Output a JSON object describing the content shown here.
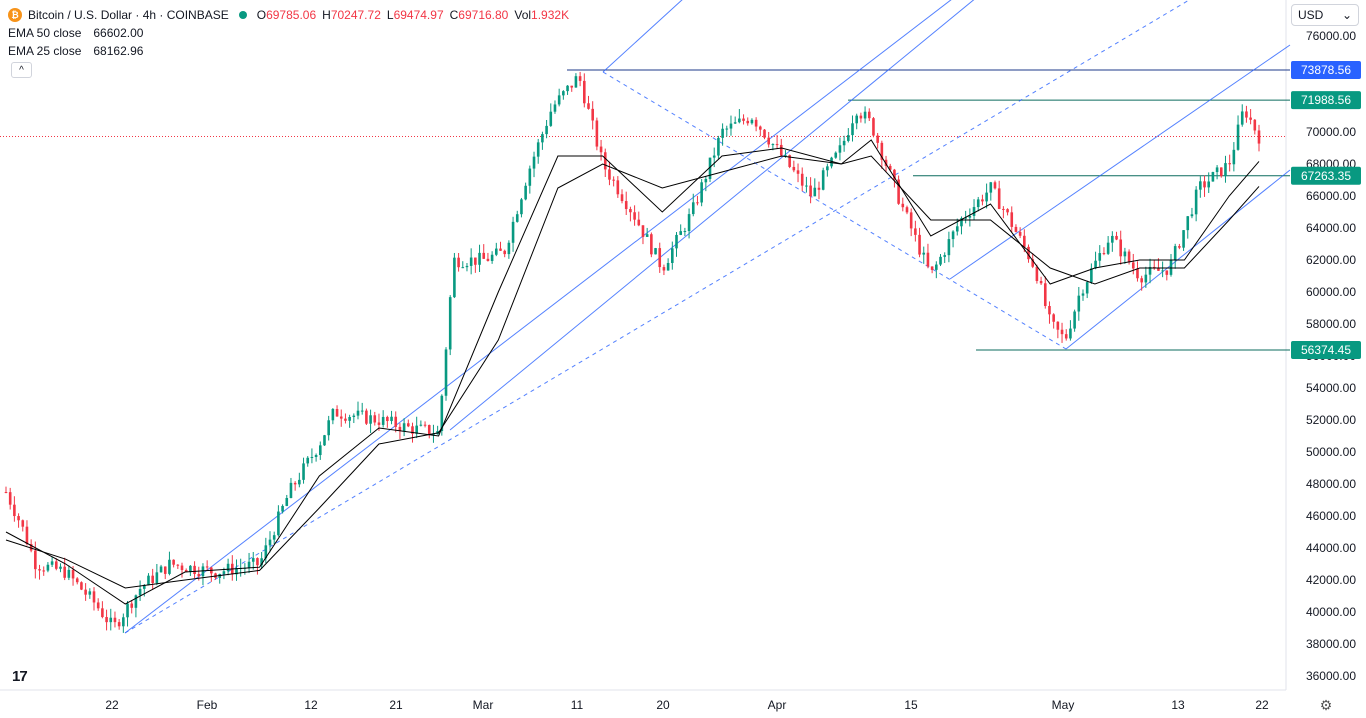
{
  "header": {
    "symbol_title": "Bitcoin / U.S. Dollar · 4h · COINBASE",
    "open_label": "O",
    "open": "69785.06",
    "high_label": "H",
    "high": "70247.72",
    "low_label": "L",
    "low": "69474.97",
    "close_label": "C",
    "close": "69716.80",
    "vol_label": "Vol",
    "vol": "1.932K"
  },
  "indicators": [
    {
      "name": "EMA 50 close",
      "value": "66602.00"
    },
    {
      "name": "EMA 25 close",
      "value": "68162.96"
    }
  ],
  "currency": "USD",
  "collapse_glyph": "^",
  "logo_text": "17",
  "icons": {
    "coin": "bitcoin-icon",
    "settings": "gear-icon",
    "dropdown": "chevron-down-icon"
  },
  "colors": {
    "up": "#089981",
    "down": "#f23645",
    "ema": "#000000",
    "channel": "#2962ff",
    "level_green": "#089981",
    "level_blue": "#2962ff"
  },
  "chart_data": {
    "type": "candlestick",
    "title": "Bitcoin / U.S. Dollar · 4h · COINBASE",
    "ylim": [
      35000,
      77000
    ],
    "y_ticks": [
      "76000.00",
      "74000.00",
      "72000.00",
      "70000.00",
      "68000.00",
      "66000.00",
      "64000.00",
      "62000.00",
      "60000.00",
      "58000.00",
      "56000.00",
      "54000.00",
      "52000.00",
      "50000.00",
      "48000.00",
      "46000.00",
      "44000.00",
      "42000.00",
      "40000.00",
      "38000.00",
      "36000.00"
    ],
    "x_ticks": [
      "22",
      "Feb",
      "12",
      "21",
      "Mar",
      "11",
      "20",
      "Apr",
      "15",
      "May",
      "13",
      "22"
    ],
    "last_price": 69716.8,
    "price_labels": [
      {
        "text": "73878.56",
        "value": 73878.56,
        "color": "blue"
      },
      {
        "text": "71988.56",
        "value": 71988.56,
        "color": "green"
      },
      {
        "text": "67263.35",
        "value": 67263.35,
        "color": "green"
      },
      {
        "text": "56374.45",
        "value": 56374.45,
        "color": "green"
      }
    ],
    "price_path": [
      {
        "x": 0,
        "y": 47500
      },
      {
        "x": 0.5,
        "y": 45500
      },
      {
        "x": 1,
        "y": 43000
      },
      {
        "x": 2,
        "y": 42500
      },
      {
        "x": 3,
        "y": 40500
      },
      {
        "x": 3.6,
        "y": 39000
      },
      {
        "x": 4.5,
        "y": 41500
      },
      {
        "x": 5.5,
        "y": 43000
      },
      {
        "x": 7,
        "y": 42500
      },
      {
        "x": 8.5,
        "y": 43000
      },
      {
        "x": 9.5,
        "y": 47500
      },
      {
        "x": 10.5,
        "y": 50500
      },
      {
        "x": 11,
        "y": 52500
      },
      {
        "x": 12.5,
        "y": 52000
      },
      {
        "x": 13.5,
        "y": 51500
      },
      {
        "x": 14.5,
        "y": 51200
      },
      {
        "x": 15,
        "y": 62000
      },
      {
        "x": 16,
        "y": 62000
      },
      {
        "x": 16.7,
        "y": 62500
      },
      {
        "x": 17.5,
        "y": 67500
      },
      {
        "x": 18.3,
        "y": 71500
      },
      {
        "x": 19.2,
        "y": 73500
      },
      {
        "x": 20,
        "y": 68000
      },
      {
        "x": 21,
        "y": 65000
      },
      {
        "x": 22,
        "y": 61500
      },
      {
        "x": 23,
        "y": 65000
      },
      {
        "x": 24,
        "y": 70000
      },
      {
        "x": 25,
        "y": 71000
      },
      {
        "x": 26,
        "y": 68500
      },
      {
        "x": 27,
        "y": 66000
      },
      {
        "x": 28,
        "y": 69000
      },
      {
        "x": 28.5,
        "y": 71500
      },
      {
        "x": 29,
        "y": 70500
      },
      {
        "x": 30,
        "y": 65500
      },
      {
        "x": 31,
        "y": 61000
      },
      {
        "x": 32,
        "y": 64500
      },
      {
        "x": 33,
        "y": 66500
      },
      {
        "x": 33.5,
        "y": 65000
      },
      {
        "x": 34.5,
        "y": 61500
      },
      {
        "x": 35,
        "y": 58000
      },
      {
        "x": 35.5,
        "y": 57000
      },
      {
        "x": 36,
        "y": 60000
      },
      {
        "x": 37,
        "y": 63500
      },
      {
        "x": 38,
        "y": 61000
      },
      {
        "x": 39,
        "y": 61500
      },
      {
        "x": 40,
        "y": 66500
      },
      {
        "x": 41,
        "y": 68000
      },
      {
        "x": 41.5,
        "y": 71500
      },
      {
        "x": 42,
        "y": 69716.8
      }
    ],
    "ema_fast_path": [
      {
        "x": 0,
        "y": 45000
      },
      {
        "x": 2,
        "y": 43000
      },
      {
        "x": 4,
        "y": 40500
      },
      {
        "x": 6,
        "y": 42500
      },
      {
        "x": 8.5,
        "y": 42800
      },
      {
        "x": 10.5,
        "y": 48500
      },
      {
        "x": 12.5,
        "y": 51500
      },
      {
        "x": 14.5,
        "y": 51000
      },
      {
        "x": 16.5,
        "y": 60000
      },
      {
        "x": 18.5,
        "y": 68500
      },
      {
        "x": 20,
        "y": 68500
      },
      {
        "x": 22,
        "y": 65000
      },
      {
        "x": 24,
        "y": 68500
      },
      {
        "x": 26,
        "y": 69000
      },
      {
        "x": 28,
        "y": 68000
      },
      {
        "x": 29,
        "y": 69500
      },
      {
        "x": 31,
        "y": 63500
      },
      {
        "x": 33,
        "y": 65500
      },
      {
        "x": 35,
        "y": 60500
      },
      {
        "x": 36.5,
        "y": 61500
      },
      {
        "x": 38,
        "y": 62000
      },
      {
        "x": 39.5,
        "y": 62000
      },
      {
        "x": 41,
        "y": 66000
      },
      {
        "x": 42,
        "y": 68162.96
      }
    ],
    "ema_slow_path": [
      {
        "x": 0,
        "y": 44500
      },
      {
        "x": 2,
        "y": 43300
      },
      {
        "x": 4,
        "y": 41500
      },
      {
        "x": 6,
        "y": 42000
      },
      {
        "x": 8.5,
        "y": 42600
      },
      {
        "x": 10.5,
        "y": 46500
      },
      {
        "x": 12.5,
        "y": 50500
      },
      {
        "x": 14.5,
        "y": 51200
      },
      {
        "x": 16.5,
        "y": 57000
      },
      {
        "x": 18.5,
        "y": 66500
      },
      {
        "x": 20,
        "y": 68000
      },
      {
        "x": 22,
        "y": 66500
      },
      {
        "x": 24,
        "y": 67500
      },
      {
        "x": 26,
        "y": 68500
      },
      {
        "x": 28,
        "y": 68000
      },
      {
        "x": 29,
        "y": 68500
      },
      {
        "x": 31,
        "y": 64500
      },
      {
        "x": 33,
        "y": 64500
      },
      {
        "x": 35,
        "y": 61500
      },
      {
        "x": 36.5,
        "y": 60500
      },
      {
        "x": 38,
        "y": 61500
      },
      {
        "x": 39.5,
        "y": 61500
      },
      {
        "x": 41,
        "y": 64500
      },
      {
        "x": 42,
        "y": 66602.0
      }
    ]
  }
}
